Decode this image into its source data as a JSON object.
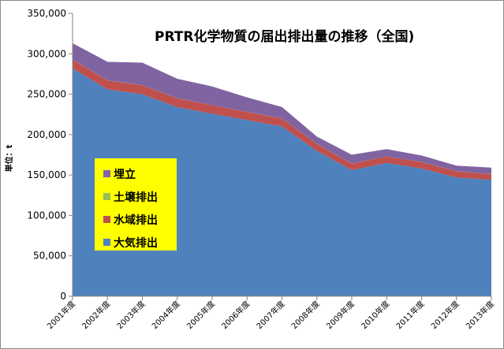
{
  "chart_data": {
    "type": "area",
    "stacked": true,
    "title": "PRTR化学物質の届出排出量の推移（全国)",
    "ylabel": "単位：t",
    "xlabel": "",
    "ylim": [
      0,
      350000
    ],
    "y_ticks": [
      "0",
      "50,000",
      "100,000",
      "150,000",
      "200,000",
      "250,000",
      "300,000",
      "350,000"
    ],
    "y_tick_values": [
      0,
      50000,
      100000,
      150000,
      200000,
      250000,
      300000,
      350000
    ],
    "categories": [
      "2001年度",
      "2002年度",
      "2003年度",
      "2004年度",
      "2005年度",
      "2006年度",
      "2007年度",
      "2008年度",
      "2009年度",
      "2010年度",
      "2011年度",
      "2012年度",
      "2013年度"
    ],
    "grid": false,
    "legend_position": "left",
    "series": [
      {
        "name": "大気排出",
        "color": "#4f81bd",
        "values": [
          282000,
          256000,
          250000,
          234000,
          226000,
          218000,
          210000,
          180000,
          156000,
          165000,
          158000,
          147000,
          144000
        ]
      },
      {
        "name": "水域排出",
        "color": "#c0504d",
        "values": [
          11000,
          11000,
          11000,
          11000,
          10500,
          10000,
          10000,
          8500,
          8000,
          8000,
          8000,
          7500,
          7000
        ]
      },
      {
        "name": "土壌排出",
        "color": "#9bbb59",
        "values": [
          100,
          100,
          100,
          100,
          100,
          100,
          100,
          100,
          100,
          100,
          100,
          100,
          100
        ]
      },
      {
        "name": "埋立",
        "color": "#8064a2",
        "values": [
          20000,
          23000,
          28000,
          24000,
          23000,
          18000,
          14000,
          9000,
          11000,
          9000,
          8000,
          7000,
          8000
        ]
      }
    ],
    "legend_order": [
      "埋立",
      "土壌排出",
      "水域排出",
      "大気排出"
    ]
  }
}
